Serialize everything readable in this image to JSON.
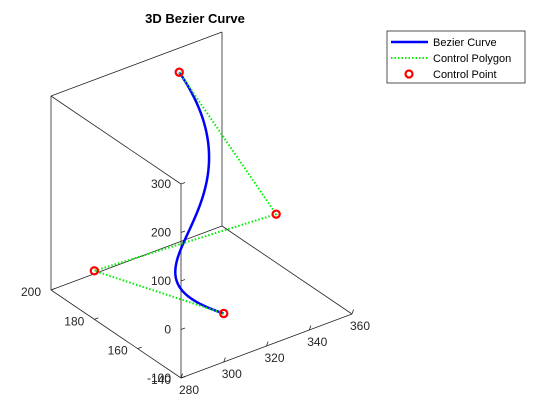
{
  "chart_data": {
    "type": "line",
    "title": "3D Bezier Curve",
    "xlabel": "",
    "ylabel": "",
    "zlabel": "",
    "xlim": [
      280,
      360
    ],
    "ylim": [
      140,
      200
    ],
    "zlim": [
      -100,
      300
    ],
    "x_ticks": [
      "280",
      "300",
      "320",
      "340",
      "360"
    ],
    "y_ticks": [
      "140",
      "160",
      "180",
      "200"
    ],
    "z_ticks": [
      "-100",
      "0",
      "100",
      "200",
      "300"
    ],
    "grid": false,
    "box": true,
    "legend_position": "top-right",
    "control_points": [
      {
        "x": 300,
        "y": 140,
        "z": 0
      },
      {
        "x": 280,
        "y": 180,
        "z": 0
      },
      {
        "x": 360,
        "y": 175,
        "z": 0
      },
      {
        "x": 340,
        "y": 200,
        "z": 250
      }
    ],
    "series": [
      {
        "name": "Bezier Curve",
        "kind": "line",
        "style": "solid",
        "color": "#0000ff"
      },
      {
        "name": "Control Polygon",
        "kind": "line",
        "style": "dotted",
        "color": "#00ee00"
      },
      {
        "name": "Control Point",
        "kind": "marker",
        "marker": "circle",
        "color": "#ff0000"
      }
    ]
  }
}
